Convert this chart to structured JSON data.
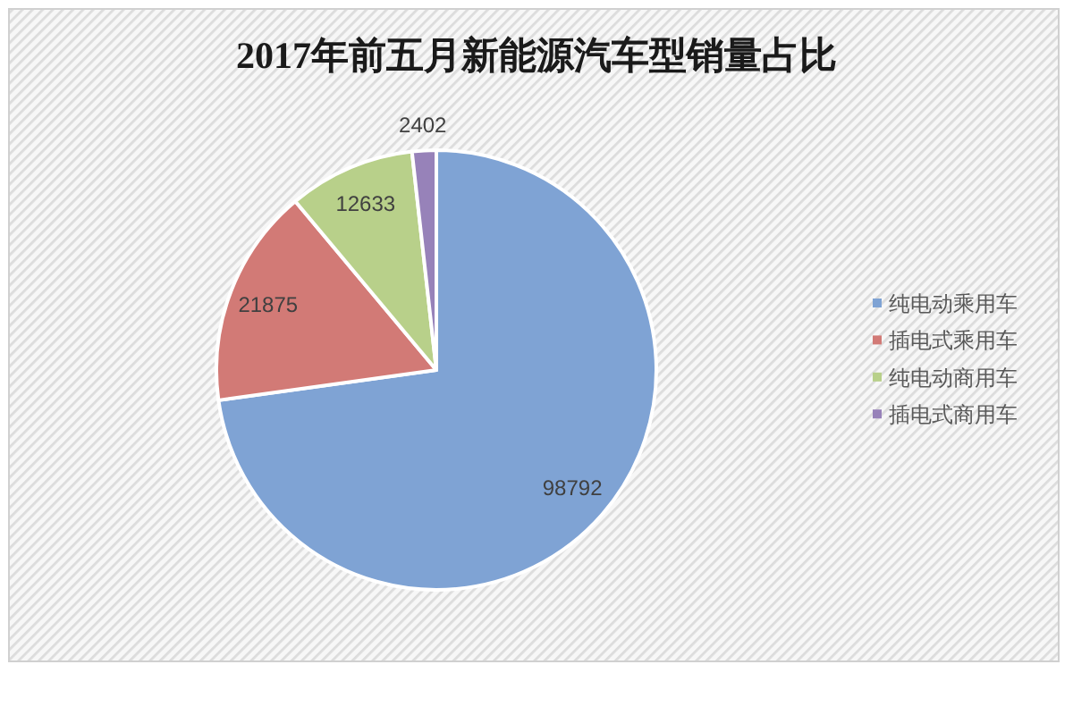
{
  "chart_data": {
    "type": "pie",
    "title": "2017年前五月新能源汽车型销量占比",
    "categories": [
      "纯电动乘用车",
      "插电式乘用车",
      "纯电动商用车",
      "插电式商用车"
    ],
    "values": [
      98792,
      21875,
      12633,
      2402
    ],
    "colors": [
      "#7fa3d4",
      "#d27a76",
      "#b8d08a",
      "#9782b9"
    ],
    "data_labels": true,
    "legend": "right"
  }
}
